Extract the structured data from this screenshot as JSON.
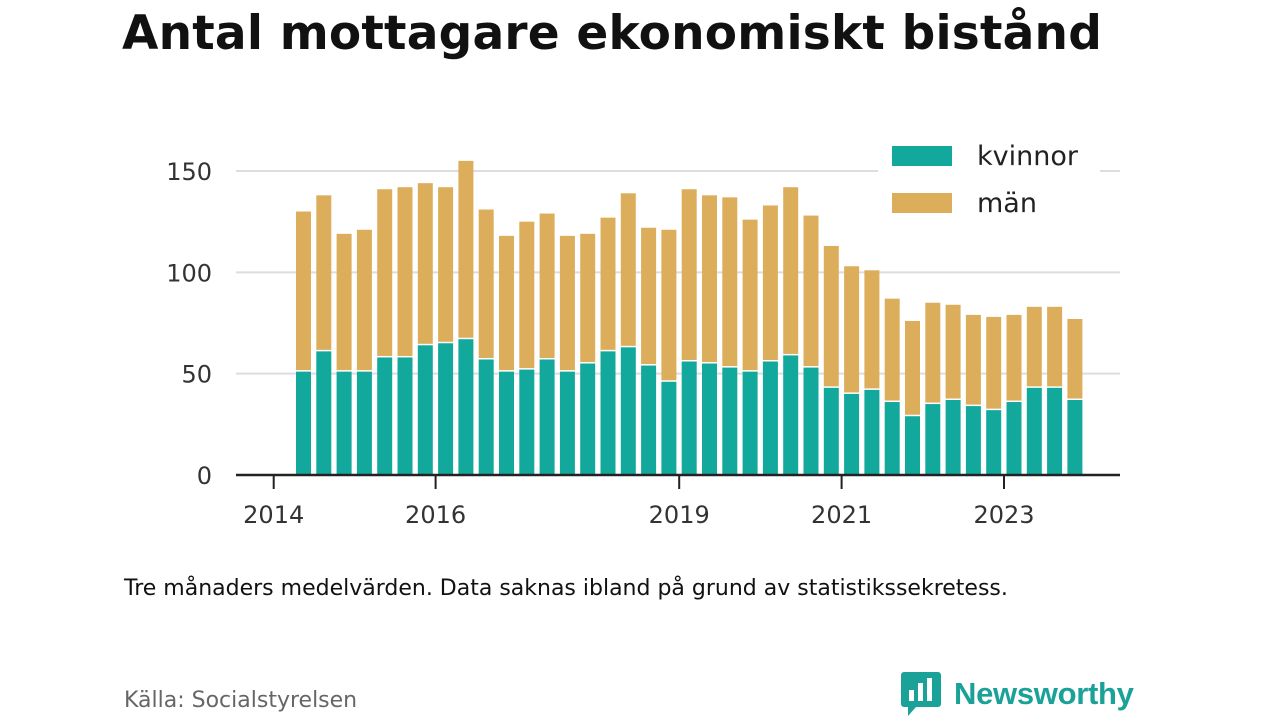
{
  "title": "Antal mottagare ekonomiskt bistånd",
  "note": "Tre månaders medelvärden. Data saknas ibland på grund av statistikssekretess.",
  "source": "Källa: Socialstyrelsen",
  "brand": {
    "name": "Newsworthy",
    "icon": "newsworthy-logo-icon"
  },
  "colors": {
    "kvinnor": "#12a89c",
    "man": "#dcae5b",
    "grid": "#dddddd",
    "axis": "#222222"
  },
  "chart_data": {
    "type": "bar",
    "stacked": true,
    "grid": true,
    "legend_position": "top-right",
    "ylim": [
      0,
      160
    ],
    "yticks": [
      0,
      50,
      100,
      150
    ],
    "xticks": [
      "2014",
      "2016",
      "2019",
      "2021",
      "2023"
    ],
    "categories": [
      "2014 Q2",
      "2014 Q3",
      "2014 Q4",
      "2015 Q1",
      "2015 Q2",
      "2015 Q3",
      "2015 Q4",
      "2016 Q1",
      "2016 Q2",
      "2016 Q3",
      "2016 Q4",
      "2017 Q1",
      "2017 Q2",
      "2017 Q3",
      "2017 Q4",
      "2018 Q1",
      "2018 Q2",
      "2018 Q3",
      "2018 Q4",
      "2019 Q1",
      "2019 Q2",
      "2019 Q3",
      "2019 Q4",
      "2020 Q1",
      "2020 Q2",
      "2020 Q3",
      "2020 Q4",
      "2021 Q1",
      "2021 Q2",
      "2021 Q3",
      "2021 Q4",
      "2022 Q1",
      "2022 Q2",
      "2022 Q3",
      "2022 Q4",
      "2023 Q1",
      "2023 Q2",
      "2023 Q3",
      "2023 Q4"
    ],
    "series": [
      {
        "name": "kvinnor",
        "values": [
          51,
          61,
          51,
          51,
          58,
          58,
          64,
          65,
          67,
          57,
          51,
          52,
          57,
          51,
          55,
          61,
          63,
          54,
          46,
          56,
          55,
          53,
          51,
          56,
          59,
          53,
          43,
          40,
          42,
          36,
          29,
          35,
          37,
          34,
          32,
          36,
          43,
          43,
          37
        ]
      },
      {
        "name": "män",
        "values": [
          79,
          77,
          68,
          70,
          83,
          84,
          80,
          77,
          88,
          74,
          67,
          73,
          72,
          67,
          64,
          66,
          76,
          68,
          75,
          85,
          83,
          84,
          75,
          77,
          83,
          75,
          70,
          63,
          59,
          51,
          47,
          50,
          47,
          45,
          46,
          43,
          40,
          40,
          40
        ]
      }
    ]
  }
}
